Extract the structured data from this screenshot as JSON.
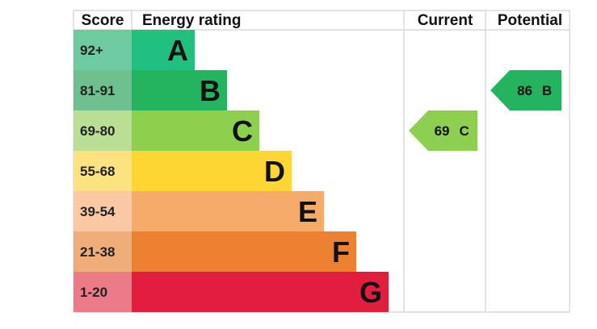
{
  "chart_data": {
    "type": "table",
    "headers": {
      "score": "Score",
      "rating": "Energy rating",
      "current": "Current",
      "potential": "Potential"
    },
    "bands": [
      {
        "range": "92+",
        "letter": "A",
        "band_color": "#22c07e",
        "score_color": "#6dcb9f"
      },
      {
        "range": "81-91",
        "letter": "B",
        "band_color": "#24b35f",
        "score_color": "#6ec08f"
      },
      {
        "range": "69-80",
        "letter": "C",
        "band_color": "#8dcf4f",
        "score_color": "#b9df95"
      },
      {
        "range": "55-68",
        "letter": "D",
        "band_color": "#fdd634",
        "score_color": "#fde37f"
      },
      {
        "range": "39-54",
        "letter": "E",
        "band_color": "#f6ab6a",
        "score_color": "#f8c9a3"
      },
      {
        "range": "21-38",
        "letter": "F",
        "band_color": "#ec8131",
        "score_color": "#efad7a"
      },
      {
        "range": "1-20",
        "letter": "G",
        "band_color": "#e31d3d",
        "score_color": "#ec7b88"
      }
    ],
    "current": {
      "value": 69,
      "letter": "C",
      "color": "#8dcf4f"
    },
    "potential": {
      "value": 86,
      "letter": "B",
      "color": "#24b35f"
    }
  }
}
